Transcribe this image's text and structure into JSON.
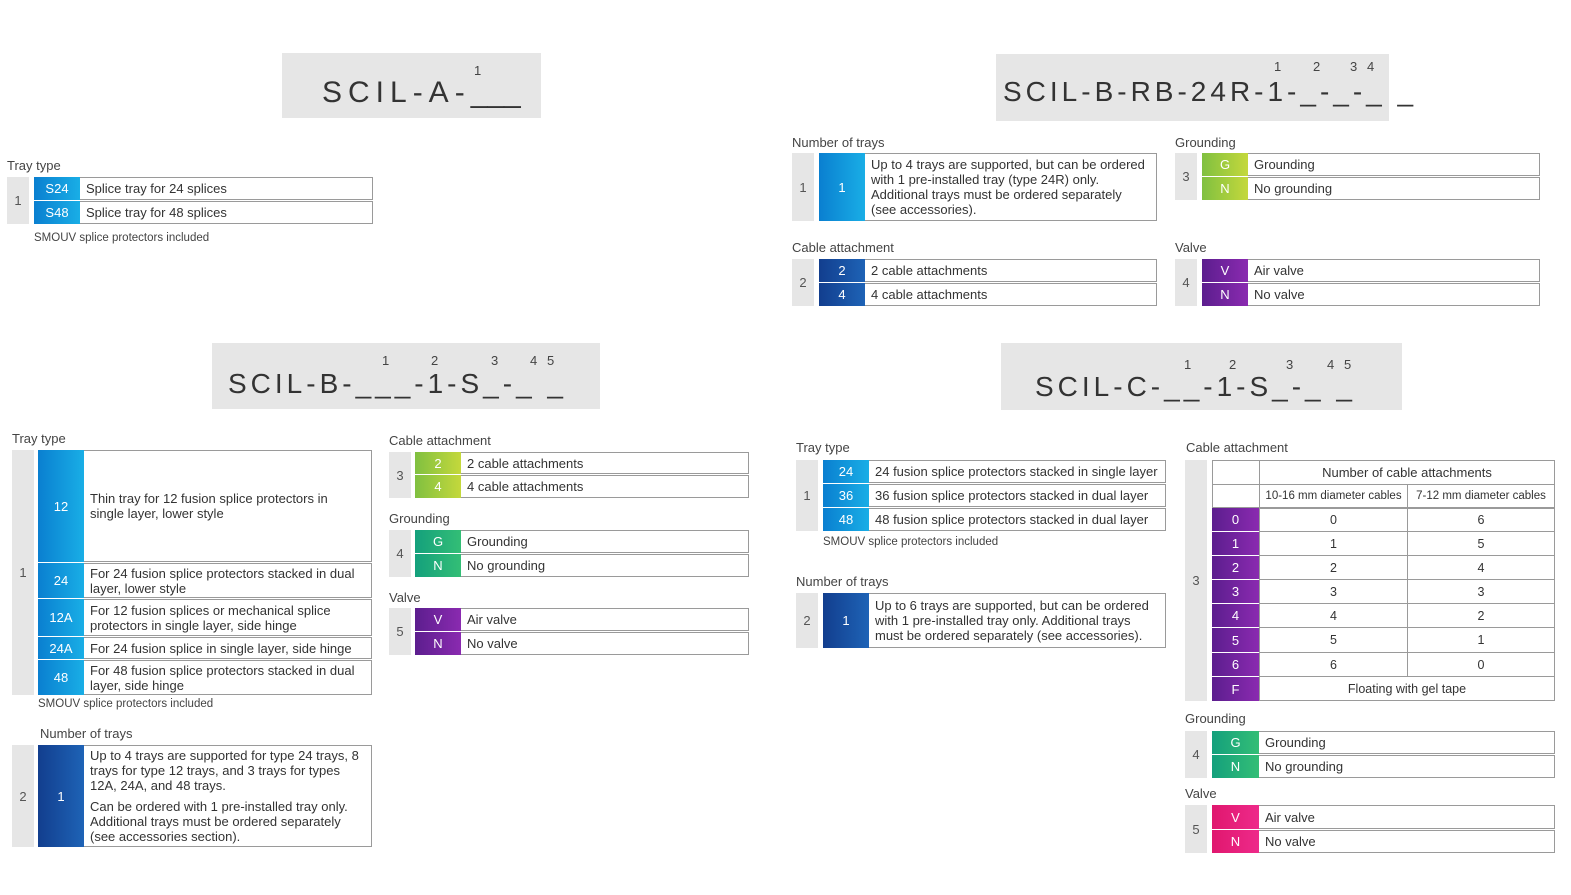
{
  "colors": {
    "gray": "#e6e6e6",
    "cyan": "#19aee6",
    "navy": "#1e63b6",
    "green": "#9bc83c",
    "teal": "#1fa878",
    "purple": "#6e2aa0",
    "magenta": "#e61e78"
  },
  "a": {
    "code_parts": [
      "SCIL-A-",
      "___"
    ],
    "superscripts": [
      "1"
    ],
    "tray_type": {
      "title": "Tray type",
      "num": "1",
      "rows": [
        {
          "code": "S24",
          "desc": "Splice tray for 24 splices"
        },
        {
          "code": "S48",
          "desc": "Splice tray for 48 splices"
        }
      ],
      "note": "SMOUV splice protectors included"
    }
  },
  "rb": {
    "code": "SCIL-B-RB-24R-1-_-_-_ _",
    "superscripts": [
      "1",
      "2",
      "3",
      "4"
    ],
    "trays": {
      "title": "Number of trays",
      "num": "1",
      "code": "1",
      "desc": "Up to 4 trays are supported, but can be ordered with 1 pre-installed tray (type 24R) only. Additional trays must be ordered separately (see accessories)."
    },
    "grounding": {
      "title": "Grounding",
      "num": "3",
      "rows": [
        {
          "code": "G",
          "desc": "Grounding"
        },
        {
          "code": "N",
          "desc": "No grounding"
        }
      ]
    },
    "cable": {
      "title": "Cable attachment",
      "num": "2",
      "rows": [
        {
          "code": "2",
          "desc": "2 cable attachments"
        },
        {
          "code": "4",
          "desc": "4 cable attachments"
        }
      ]
    },
    "valve": {
      "title": "Valve",
      "num": "4",
      "rows": [
        {
          "code": "V",
          "desc": "Air valve"
        },
        {
          "code": "N",
          "desc": "No valve"
        }
      ]
    }
  },
  "b": {
    "code": "SCIL-B-___-1-S_-_ _",
    "superscripts": [
      "1",
      "2",
      "3",
      "4",
      "5"
    ],
    "tray_type": {
      "title": "Tray type",
      "num": "1",
      "rows": [
        {
          "code": "12",
          "desc": "Thin tray for 12 fusion splice protectors in single layer, lower style"
        },
        {
          "code": "24",
          "desc": "For 24 fusion splice protectors stacked in dual layer, lower style"
        },
        {
          "code": "12A",
          "desc": "For 12 fusion splices or mechanical splice protectors in single layer, side hinge"
        },
        {
          "code": "24A",
          "desc": "For 24 fusion splice in single layer, side hinge"
        },
        {
          "code": "48",
          "desc": "For 48 fusion splice protectors stacked in dual layer, side hinge"
        }
      ],
      "note": "SMOUV splice protectors included"
    },
    "trays": {
      "title": "Number of trays",
      "num": "2",
      "code": "1",
      "desc1": "Up to 4 trays are supported for type 24 trays, 8 trays for type 12 trays, and 3 trays for types 12A, 24A, and 48 trays.",
      "desc2": "Can be ordered with 1 pre-installed tray only. Additional trays must be ordered separately (see accessories section)."
    },
    "cable": {
      "title": "Cable attachment",
      "num": "3",
      "rows": [
        {
          "code": "2",
          "desc": "2 cable attachments"
        },
        {
          "code": "4",
          "desc": "4 cable attachments"
        }
      ]
    },
    "grounding": {
      "title": "Grounding",
      "num": "4",
      "rows": [
        {
          "code": "G",
          "desc": "Grounding"
        },
        {
          "code": "N",
          "desc": "No grounding"
        }
      ]
    },
    "valve": {
      "title": "Valve",
      "num": "5",
      "rows": [
        {
          "code": "V",
          "desc": "Air valve"
        },
        {
          "code": "N",
          "desc": "No valve"
        }
      ]
    }
  },
  "c": {
    "code": "SCIL-C-__-1-S_-_ _",
    "superscripts": [
      "1",
      "2",
      "3",
      "4",
      "5"
    ],
    "tray_type": {
      "title": "Tray type",
      "num": "1",
      "rows": [
        {
          "code": "24",
          "desc": "24 fusion splice protectors stacked in single layer"
        },
        {
          "code": "36",
          "desc": "36 fusion splice protectors stacked in dual layer"
        },
        {
          "code": "48",
          "desc": "48 fusion splice protectors stacked in dual layer"
        }
      ],
      "note": "SMOUV splice protectors included"
    },
    "trays": {
      "title": "Number of trays",
      "num": "2",
      "code": "1",
      "desc": "Up to 6 trays are supported, but can be ordered with 1 pre-installed tray only. Additional trays must be ordered separately (see accessories)."
    },
    "cable": {
      "title": "Cable attachment",
      "num": "3",
      "header": "Number of cable attachments",
      "col1": "10-16 mm diameter cables",
      "col2": "7-12 mm diameter cables",
      "rows": [
        {
          "code": "0",
          "a": "0",
          "b": "6"
        },
        {
          "code": "1",
          "a": "1",
          "b": "5"
        },
        {
          "code": "2",
          "a": "2",
          "b": "4"
        },
        {
          "code": "3",
          "a": "3",
          "b": "3"
        },
        {
          "code": "4",
          "a": "4",
          "b": "2"
        },
        {
          "code": "5",
          "a": "5",
          "b": "1"
        },
        {
          "code": "6",
          "a": "6",
          "b": "0"
        }
      ],
      "floating": {
        "code": "F",
        "desc": "Floating with gel tape"
      }
    },
    "grounding": {
      "title": "Grounding",
      "num": "4",
      "rows": [
        {
          "code": "G",
          "desc": "Grounding"
        },
        {
          "code": "N",
          "desc": "No grounding"
        }
      ]
    },
    "valve": {
      "title": "Valve",
      "num": "5",
      "rows": [
        {
          "code": "V",
          "desc": "Air valve"
        },
        {
          "code": "N",
          "desc": "No valve"
        }
      ]
    }
  }
}
